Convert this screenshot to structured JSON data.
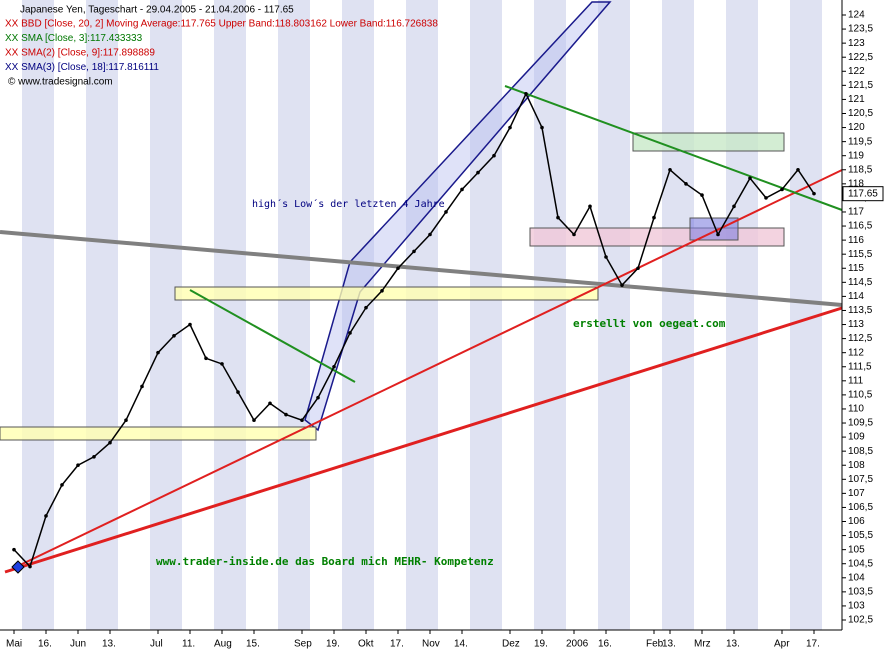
{
  "chart_data": {
    "type": "line",
    "title": "Japanese Yen, Tageschart - 29.04.2005 - 21.04.2006 - 117.65",
    "legend": [
      {
        "text": "XX BBD [Close, 20, 2] Moving Average:117.765 Upper Band:118.803162 Lower Band:116.726838",
        "color": "#cc0000"
      },
      {
        "text": "XX SMA [Close, 3]:117.433333",
        "color": "#007700"
      },
      {
        "text": "XX SMA(2) [Close, 9]:117.898889",
        "color": "#cc0000"
      },
      {
        "text": "XX SMA(3) [Close, 18]:117.816111",
        "color": "#000080"
      }
    ],
    "copyright": "© www.tradesignal.com",
    "annotations": [
      {
        "text": "high´s Low´s der letzten 4 Jahre",
        "color": "#000080"
      },
      {
        "text": "erstellt von oegeat.com",
        "color": "#008000"
      },
      {
        "text": "www.trader-inside.de das Board mich MEHR- Kompetenz",
        "color": "#008000"
      }
    ],
    "categories": [
      "Mai",
      null,
      "16.",
      null,
      "Jun",
      null,
      "13.",
      null,
      null,
      "Jul",
      null,
      "11.",
      null,
      "Aug",
      null,
      "15.",
      null,
      null,
      "Sep",
      null,
      "19.",
      null,
      "Okt",
      null,
      "17.",
      null,
      "Nov",
      null,
      "14.",
      null,
      null,
      "Dez",
      null,
      "19.",
      null,
      "2006",
      null,
      "16.",
      null,
      null,
      "Feb",
      "13.",
      null,
      "Mrz",
      null,
      "13.",
      null,
      null,
      "Apr",
      null,
      "17."
    ],
    "series": [
      {
        "name": "Japanese Yen",
        "color": "#000000",
        "values": [
          105.0,
          104.4,
          106.2,
          107.3,
          108.0,
          108.3,
          108.8,
          109.6,
          110.8,
          112.0,
          112.6,
          113.0,
          111.8,
          111.6,
          110.6,
          109.6,
          110.2,
          109.8,
          109.6,
          110.4,
          111.5,
          112.7,
          113.6,
          114.2,
          115.0,
          115.6,
          116.2,
          117.0,
          117.8,
          118.4,
          119.0,
          120.0,
          121.2,
          120.0,
          116.8,
          116.2,
          117.2,
          115.4,
          114.4,
          115.0,
          116.8,
          118.5,
          118.0,
          117.6,
          116.2,
          117.2,
          118.2,
          117.5,
          117.8,
          118.5,
          117.65
        ]
      }
    ],
    "last_value": 117.65,
    "ylim": [
      102.5,
      124
    ],
    "yticks": [
      {
        "value": 102.5,
        "label": "102,5"
      },
      103,
      {
        "value": 103.5,
        "label": "103,5"
      },
      104,
      {
        "value": 104.5,
        "label": "104,5"
      },
      105,
      {
        "value": 105.5,
        "label": "105,5"
      },
      106,
      {
        "value": 106.5,
        "label": "106,5"
      },
      107,
      {
        "value": 107.5,
        "label": "107,5"
      },
      108,
      {
        "value": 108.5,
        "label": "108,5"
      },
      109,
      {
        "value": 109.5,
        "label": "109,5"
      },
      110,
      {
        "value": 110.5,
        "label": "110,5"
      },
      111,
      {
        "value": 111.5,
        "label": "111,5"
      },
      112,
      {
        "value": 112.5,
        "label": "112,5"
      },
      113,
      {
        "value": 113.5,
        "label": "113,5"
      },
      114,
      {
        "value": 114.5,
        "label": "114,5"
      },
      115,
      {
        "value": 115.5,
        "label": "115,5"
      },
      116,
      {
        "value": 116.5,
        "label": "116,5"
      },
      117,
      {
        "value": 117.5,
        "label": "117,5"
      },
      118,
      {
        "value": 118.5,
        "label": "118,5"
      },
      119,
      {
        "value": 119.5,
        "label": "119,5"
      },
      120,
      {
        "value": 120.5,
        "label": "120,5"
      },
      121,
      {
        "value": 121.5,
        "label": "121,5"
      },
      122,
      {
        "value": 122.5,
        "label": "122,5"
      },
      123,
      {
        "value": 123.5,
        "label": "123,5"
      },
      124
    ]
  }
}
